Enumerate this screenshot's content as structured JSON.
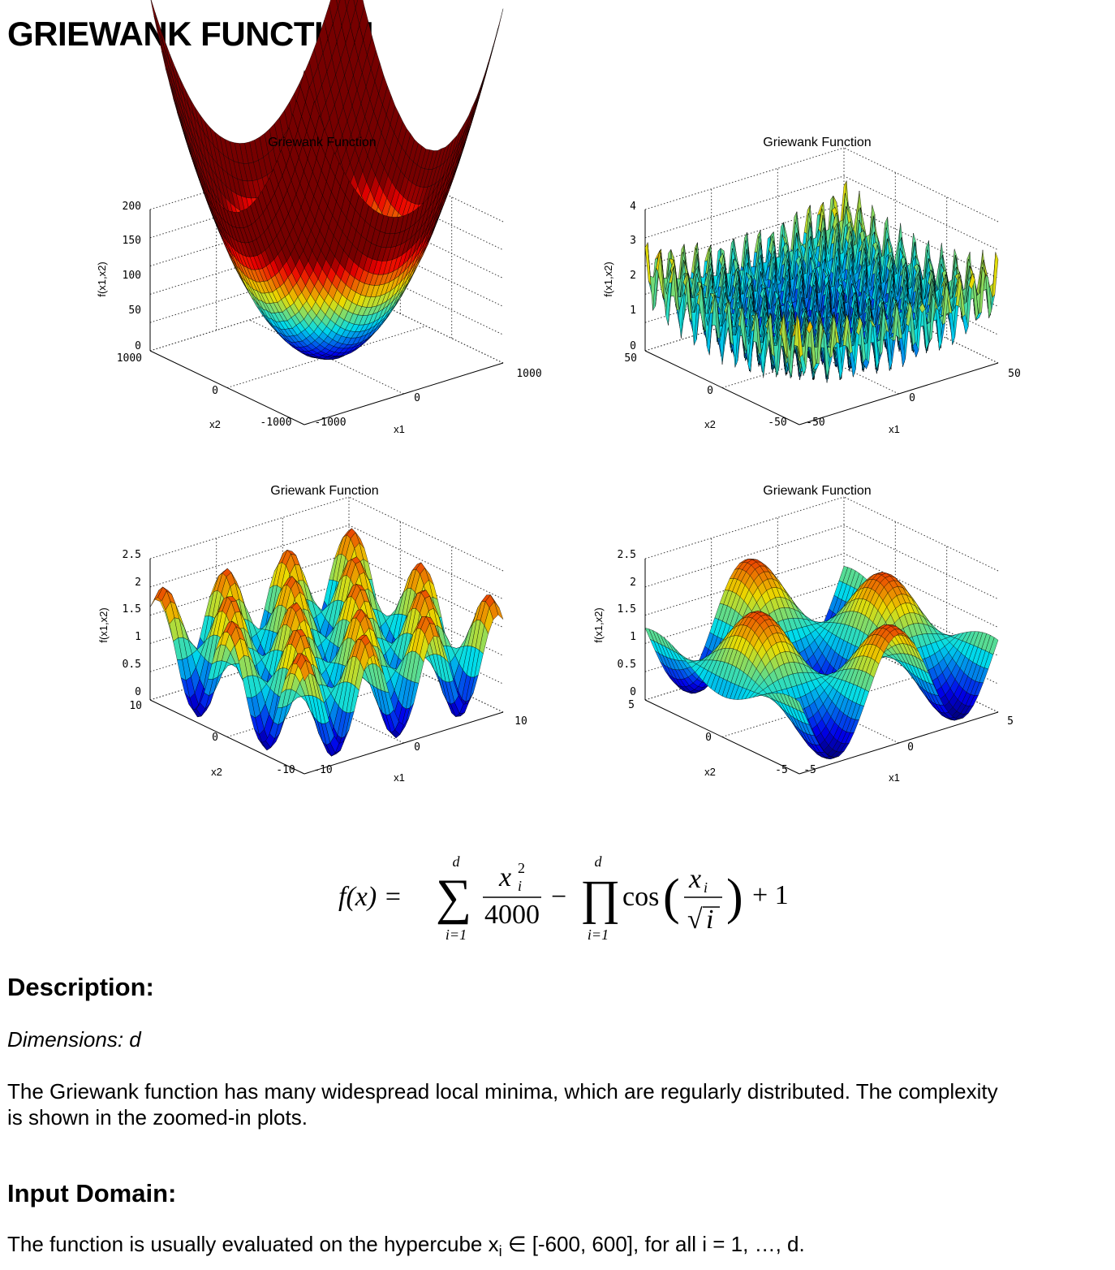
{
  "page": {
    "title": "GRIEWANK FUNCTION"
  },
  "plots": [
    {
      "title": "Griewank Function",
      "xlabel": "x1",
      "ylabel": "x2",
      "zlabel": "f(x1,x2)",
      "zticks": [
        "200",
        "150",
        "100",
        "50",
        "0"
      ],
      "x2ticks": [
        "1000",
        "0",
        "-1000"
      ],
      "x1ticks": [
        "-1000",
        "0",
        "1000"
      ]
    },
    {
      "title": "Griewank Function",
      "xlabel": "x1",
      "ylabel": "x2",
      "zlabel": "f(x1,x2)",
      "zticks": [
        "4",
        "3",
        "2",
        "1",
        "0"
      ],
      "x2ticks": [
        "50",
        "0",
        "-50"
      ],
      "x1ticks": [
        "-50",
        "0",
        "50"
      ]
    },
    {
      "title": "Griewank Function",
      "xlabel": "x1",
      "ylabel": "x2",
      "zlabel": "f(x1,x2)",
      "zticks": [
        "2.5",
        "2",
        "1.5",
        "1",
        "0.5",
        "0"
      ],
      "x2ticks": [
        "10",
        "0",
        "-10"
      ],
      "x1ticks": [
        "-10",
        "0",
        "10"
      ]
    },
    {
      "title": "Griewank Function",
      "xlabel": "x1",
      "ylabel": "x2",
      "zlabel": "f(x1,x2)",
      "zticks": [
        "2.5",
        "2",
        "1.5",
        "1",
        "0.5",
        "0"
      ],
      "x2ticks": [
        "5",
        "0",
        "-5"
      ],
      "x1ticks": [
        "-5",
        "0",
        "5"
      ]
    }
  ],
  "chart_data": [
    {
      "type": "surface",
      "title": "Griewank Function",
      "xlabel": "x1",
      "ylabel": "x2",
      "zlabel": "f(x1,x2)",
      "xlim": [
        -1000,
        1000
      ],
      "ylim": [
        -1000,
        1000
      ],
      "zlim": [
        0,
        200
      ],
      "grid": true
    },
    {
      "type": "surface",
      "title": "Griewank Function",
      "xlabel": "x1",
      "ylabel": "x2",
      "zlabel": "f(x1,x2)",
      "xlim": [
        -50,
        50
      ],
      "ylim": [
        -50,
        50
      ],
      "zlim": [
        0,
        4
      ],
      "grid": true
    },
    {
      "type": "surface",
      "title": "Griewank Function",
      "xlabel": "x1",
      "ylabel": "x2",
      "zlabel": "f(x1,x2)",
      "xlim": [
        -10,
        10
      ],
      "ylim": [
        -10,
        10
      ],
      "zlim": [
        0,
        2.5
      ],
      "grid": true
    },
    {
      "type": "surface",
      "title": "Griewank Function",
      "xlabel": "x1",
      "ylabel": "x2",
      "zlabel": "f(x1,x2)",
      "xlim": [
        -5,
        5
      ],
      "ylim": [
        -5,
        5
      ],
      "zlim": [
        0,
        2.5
      ],
      "grid": true
    }
  ],
  "formula": {
    "lhs": "f(x) =",
    "sum_upper": "d",
    "sum_lower": "i=1",
    "frac_num": "x",
    "frac_num_sup": "2",
    "frac_num_sub": "i",
    "frac_den": "4000",
    "minus": "−",
    "prod_upper": "d",
    "prod_lower": "i=1",
    "cos": "cos",
    "inner_num": "x",
    "inner_num_sub": "i",
    "inner_den": "i",
    "plus_one": "+ 1"
  },
  "description": {
    "heading": "Description:",
    "dimensions": "Dimensions: d",
    "text_line1": "The Griewank function has many widespread local minima, which are regularly distributed. The complexity",
    "text_line2": "is shown in the zoomed-in plots."
  },
  "input_domain": {
    "heading": "Input Domain:",
    "text_pre": "The function is usually evaluated on the hypercube x",
    "text_sub": "i",
    "text_post": " ∈ [-600, 600], for all i = 1, …, d."
  }
}
